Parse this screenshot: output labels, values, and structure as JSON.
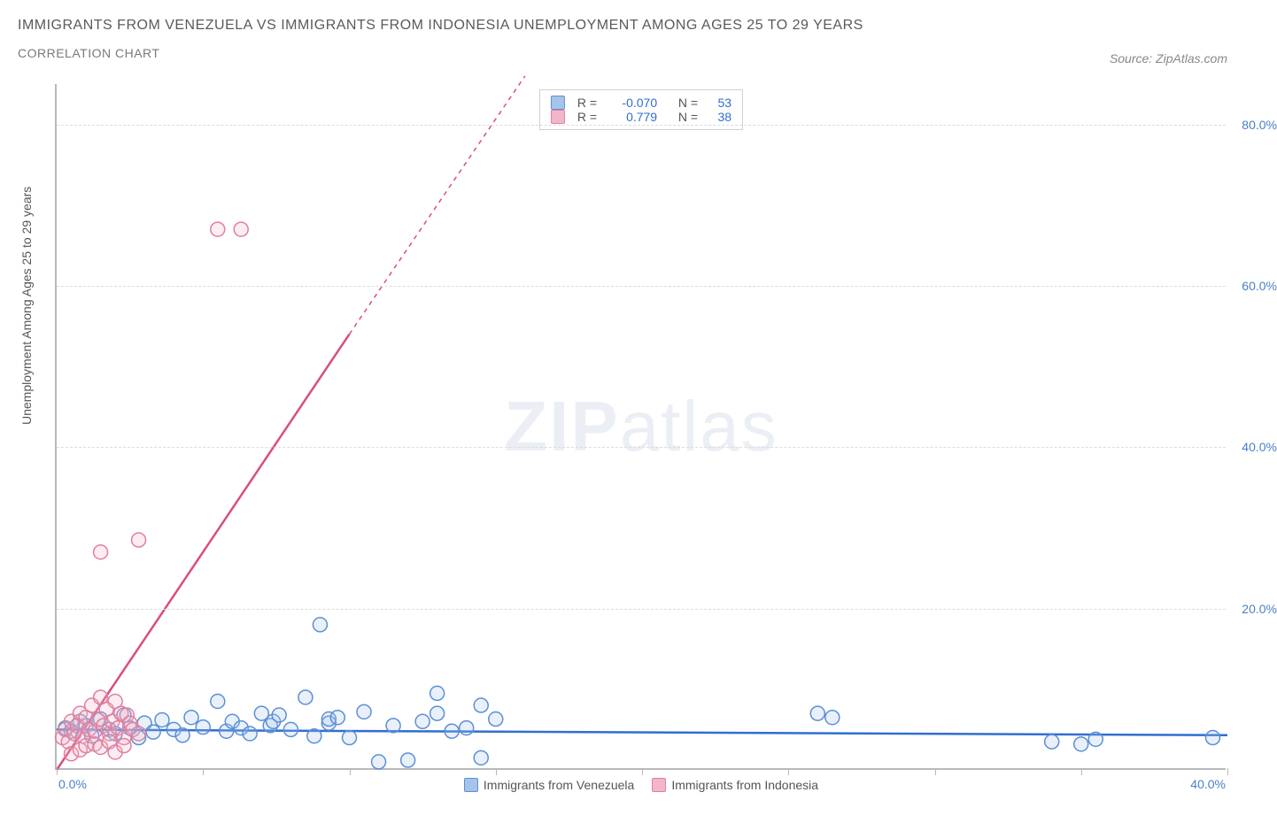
{
  "title": "IMMIGRANTS FROM VENEZUELA VS IMMIGRANTS FROM INDONESIA UNEMPLOYMENT AMONG AGES 25 TO 29 YEARS",
  "subtitle": "CORRELATION CHART",
  "source": "Source: ZipAtlas.com",
  "watermark_a": "ZIP",
  "watermark_b": "atlas",
  "chart": {
    "type": "scatter-with-regression",
    "x_label": "",
    "y_label": "Unemployment Among Ages 25 to 29 years",
    "xlim": [
      0,
      40
    ],
    "ylim": [
      0,
      85
    ],
    "x_ticks": [
      0,
      5,
      10,
      15,
      20,
      25,
      30,
      35,
      40
    ],
    "x_tick_labels": {
      "left": "0.0%",
      "right": "40.0%"
    },
    "y_ticks": [
      20,
      40,
      60,
      80
    ],
    "y_tick_labels": [
      "20.0%",
      "40.0%",
      "60.0%",
      "80.0%"
    ],
    "grid_color": "#dcdcdc",
    "axis_color": "#b9b9b9",
    "background_color": "#ffffff",
    "marker_radius": 8,
    "marker_stroke_width": 1.5,
    "marker_fill_opacity": 0.25,
    "series": [
      {
        "name": "Immigrants from Venezuela",
        "color_stroke": "#5b8fd6",
        "color_fill": "#a6c4ea",
        "r_label": "R =",
        "r_value": "-0.070",
        "n_label": "N =",
        "n_value": "53",
        "regression": {
          "x1": 0,
          "y1": 5.0,
          "x2": 40,
          "y2": 4.3,
          "dash": false,
          "width": 2.5,
          "color": "#2f6fd0"
        },
        "points": [
          [
            0.3,
            5.2
          ],
          [
            0.5,
            4.8
          ],
          [
            0.8,
            6.0
          ],
          [
            1.0,
            5.5
          ],
          [
            1.2,
            4.2
          ],
          [
            1.5,
            6.3
          ],
          [
            1.8,
            5.0
          ],
          [
            2.0,
            4.5
          ],
          [
            2.3,
            6.8
          ],
          [
            2.5,
            5.2
          ],
          [
            2.8,
            4.0
          ],
          [
            3.0,
            5.8
          ],
          [
            3.3,
            4.7
          ],
          [
            3.6,
            6.2
          ],
          [
            4.0,
            5.0
          ],
          [
            4.3,
            4.3
          ],
          [
            4.6,
            6.5
          ],
          [
            5.0,
            5.3
          ],
          [
            5.5,
            8.5
          ],
          [
            5.8,
            4.8
          ],
          [
            6.0,
            6.0
          ],
          [
            6.3,
            5.2
          ],
          [
            6.6,
            4.5
          ],
          [
            7.0,
            7.0
          ],
          [
            7.3,
            5.5
          ],
          [
            7.4,
            6.0
          ],
          [
            7.6,
            6.8
          ],
          [
            8.0,
            5.0
          ],
          [
            8.5,
            9.0
          ],
          [
            8.8,
            4.2
          ],
          [
            9.0,
            18.0
          ],
          [
            9.3,
            5.8
          ],
          [
            9.3,
            6.3
          ],
          [
            9.6,
            6.5
          ],
          [
            10.0,
            4.0
          ],
          [
            10.5,
            7.2
          ],
          [
            11.0,
            1.0
          ],
          [
            11.5,
            5.5
          ],
          [
            12.0,
            1.2
          ],
          [
            12.5,
            6.0
          ],
          [
            13.0,
            9.5
          ],
          [
            13.0,
            7.0
          ],
          [
            13.5,
            4.8
          ],
          [
            14.0,
            5.2
          ],
          [
            14.5,
            1.5
          ],
          [
            14.5,
            8.0
          ],
          [
            15.0,
            6.3
          ],
          [
            26.0,
            7.0
          ],
          [
            26.5,
            6.5
          ],
          [
            34.0,
            3.5
          ],
          [
            35.0,
            3.2
          ],
          [
            35.5,
            3.8
          ],
          [
            39.5,
            4.0
          ]
        ]
      },
      {
        "name": "Immigrants from Indonesia",
        "color_stroke": "#e07fa0",
        "color_fill": "#f2b6c9",
        "r_label": "R =",
        "r_value": "0.779",
        "n_label": "N =",
        "n_value": "38",
        "regression": {
          "x1": 0,
          "y1": 0,
          "x2": 10,
          "y2": 54,
          "dash_from_x": 10,
          "dash_to_x": 16,
          "dash_to_y": 86,
          "width": 2.5,
          "color": "#d94f7c"
        },
        "points": [
          [
            0.2,
            4.0
          ],
          [
            0.3,
            5.0
          ],
          [
            0.4,
            3.5
          ],
          [
            0.5,
            6.0
          ],
          [
            0.6,
            4.5
          ],
          [
            0.7,
            5.5
          ],
          [
            0.8,
            7.0
          ],
          [
            0.9,
            4.2
          ],
          [
            1.0,
            6.5
          ],
          [
            1.1,
            5.0
          ],
          [
            1.2,
            8.0
          ],
          [
            1.3,
            4.8
          ],
          [
            1.4,
            6.2
          ],
          [
            1.5,
            9.0
          ],
          [
            1.6,
            5.5
          ],
          [
            1.7,
            7.5
          ],
          [
            1.8,
            4.5
          ],
          [
            1.9,
            6.0
          ],
          [
            2.0,
            8.5
          ],
          [
            2.1,
            5.2
          ],
          [
            2.2,
            7.0
          ],
          [
            2.3,
            4.0
          ],
          [
            2.4,
            6.8
          ],
          [
            2.5,
            5.8
          ],
          [
            0.5,
            2.0
          ],
          [
            0.8,
            2.5
          ],
          [
            1.0,
            3.0
          ],
          [
            1.3,
            3.2
          ],
          [
            1.5,
            2.8
          ],
          [
            1.8,
            3.5
          ],
          [
            2.0,
            2.2
          ],
          [
            2.3,
            3.0
          ],
          [
            1.5,
            27.0
          ],
          [
            2.8,
            28.5
          ],
          [
            5.5,
            67.0
          ],
          [
            6.3,
            67.0
          ],
          [
            2.6,
            5.0
          ],
          [
            2.8,
            4.5
          ]
        ]
      }
    ],
    "bottom_legend": [
      {
        "label": "Immigrants from Venezuela",
        "fill": "#a6c4ea",
        "stroke": "#5b8fd6"
      },
      {
        "label": "Immigrants from Indonesia",
        "fill": "#f2b6c9",
        "stroke": "#e07fa0"
      }
    ]
  }
}
